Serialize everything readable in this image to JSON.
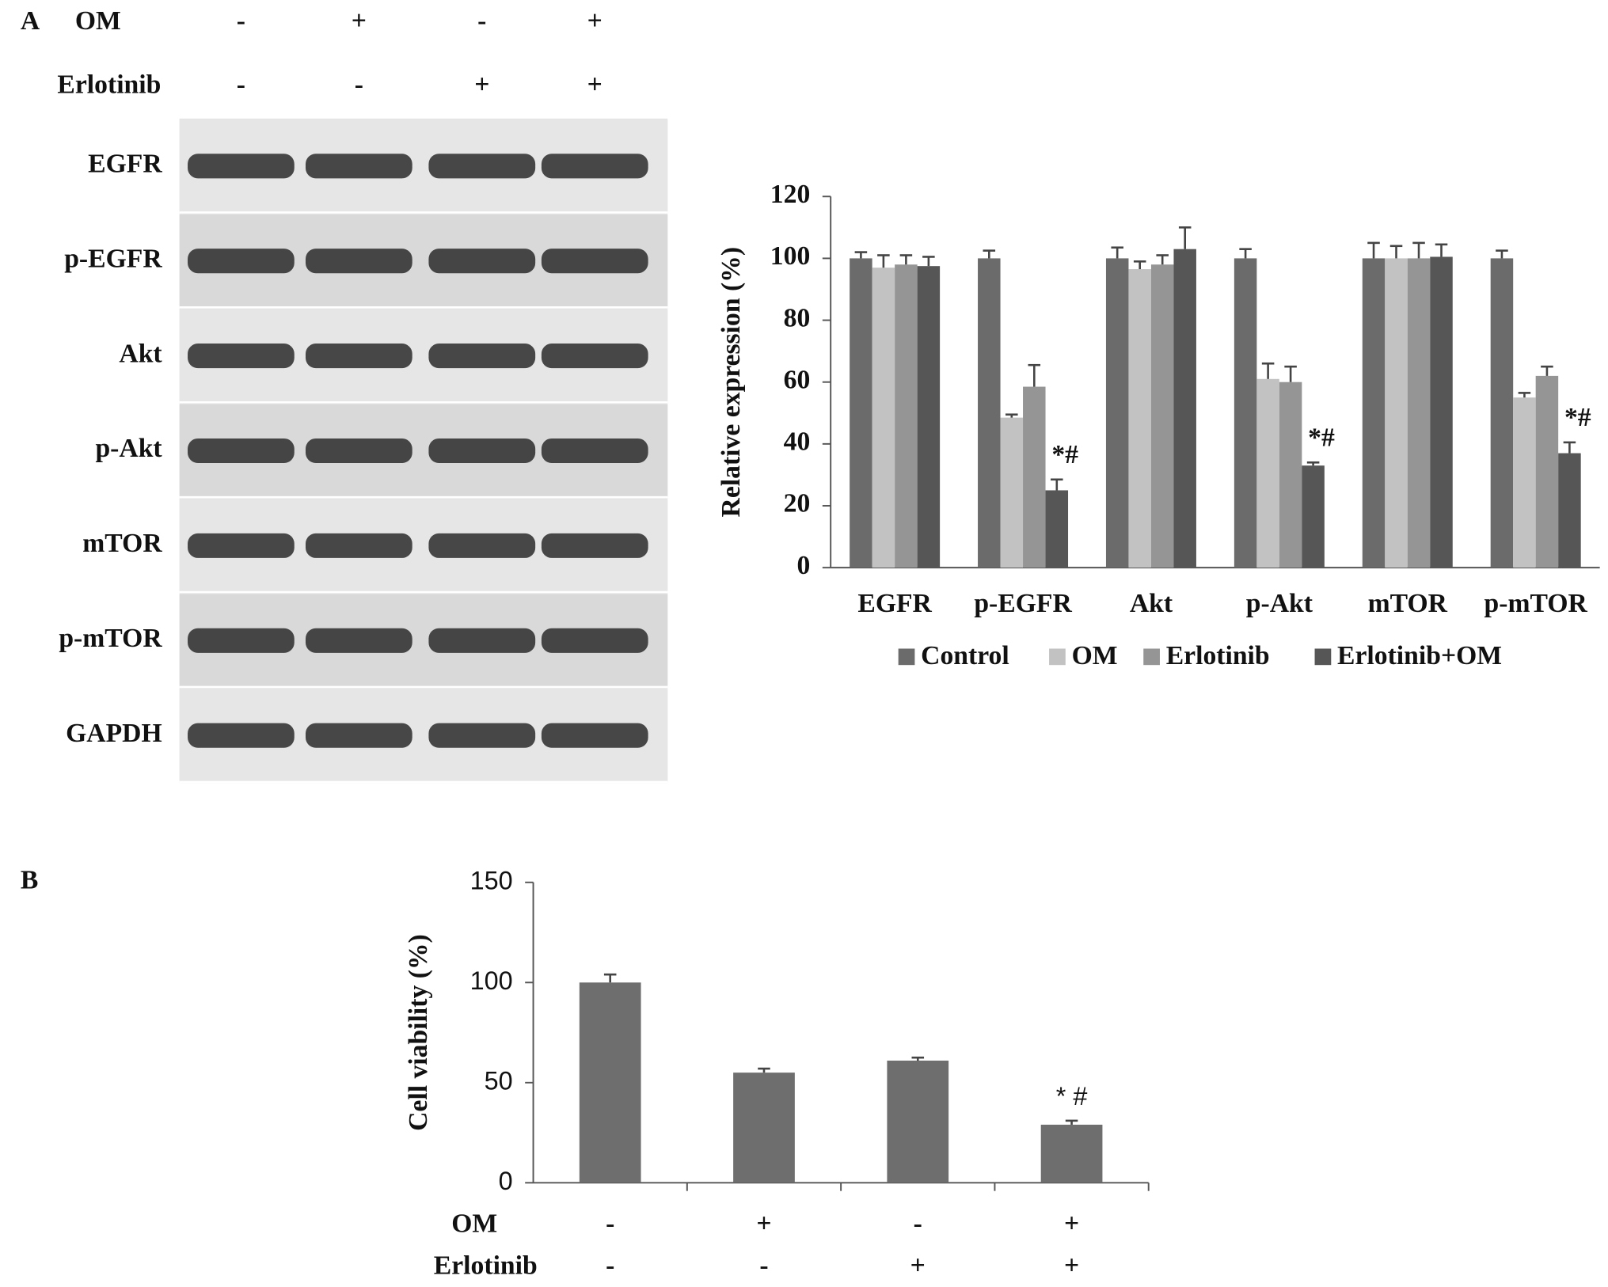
{
  "panel_labels": [
    "A",
    "B"
  ],
  "blot": {
    "treatments": [
      {
        "label": "OM",
        "values": [
          "-",
          "+",
          "-",
          "+"
        ]
      },
      {
        "label": "Erlotinib",
        "values": [
          "-",
          "-",
          "+",
          "+"
        ]
      }
    ],
    "rows": [
      "EGFR",
      "p-EGFR",
      "Akt",
      "p-Akt",
      "mTOR",
      "p-mTOR",
      "GAPDH"
    ]
  },
  "chart_data": [
    {
      "type": "bar",
      "y_label": "Relative expression (%)",
      "categories": [
        "EGFR",
        "p-EGFR",
        "Akt",
        "p-Akt",
        "mTOR",
        "p-mTOR"
      ],
      "series": [
        {
          "name": "Control",
          "color": "#6b6b6b",
          "values": [
            100,
            100,
            100,
            100,
            100,
            100
          ],
          "errors": [
            2,
            2.5,
            3.5,
            3,
            5,
            2.5
          ]
        },
        {
          "name": "OM",
          "color": "#c2c2c2",
          "values": [
            97,
            48.5,
            96.5,
            61,
            100,
            55
          ],
          "errors": [
            4,
            1,
            2.5,
            5,
            4,
            1.5
          ]
        },
        {
          "name": "Erlotinib",
          "color": "#959595",
          "values": [
            98,
            58.5,
            98,
            60,
            100,
            62
          ],
          "errors": [
            3,
            7,
            3,
            5,
            5,
            3
          ]
        },
        {
          "name": "Erlotinib+OM",
          "color": "#565656",
          "values": [
            97.5,
            25,
            103,
            33,
            100.5,
            37
          ],
          "errors": [
            3,
            3.5,
            7,
            1,
            4,
            3.5
          ],
          "significance": [
            null,
            "*#",
            null,
            "*#",
            null,
            "*#"
          ]
        }
      ],
      "ylim": [
        0,
        120
      ],
      "yticks": [
        0,
        20,
        40,
        60,
        80,
        100,
        120
      ],
      "grid": false,
      "legend": "bottom"
    },
    {
      "type": "bar",
      "y_label": "Cell viability (%)",
      "categories": [
        null,
        null,
        null,
        null
      ],
      "values": [
        100,
        55,
        61,
        29
      ],
      "errors": [
        4,
        2,
        1.5,
        2
      ],
      "color": "#6e6e6e",
      "significance": [
        null,
        null,
        null,
        "* #"
      ],
      "condition_rows": [
        {
          "label": "OM",
          "values": [
            "-",
            "+",
            "-",
            "+"
          ]
        },
        {
          "label": "Erlotinib",
          "values": [
            "-",
            "-",
            "+",
            "+"
          ]
        }
      ],
      "ylim": [
        0,
        150
      ],
      "yticks": [
        0,
        50,
        100,
        150
      ],
      "grid": false
    }
  ]
}
